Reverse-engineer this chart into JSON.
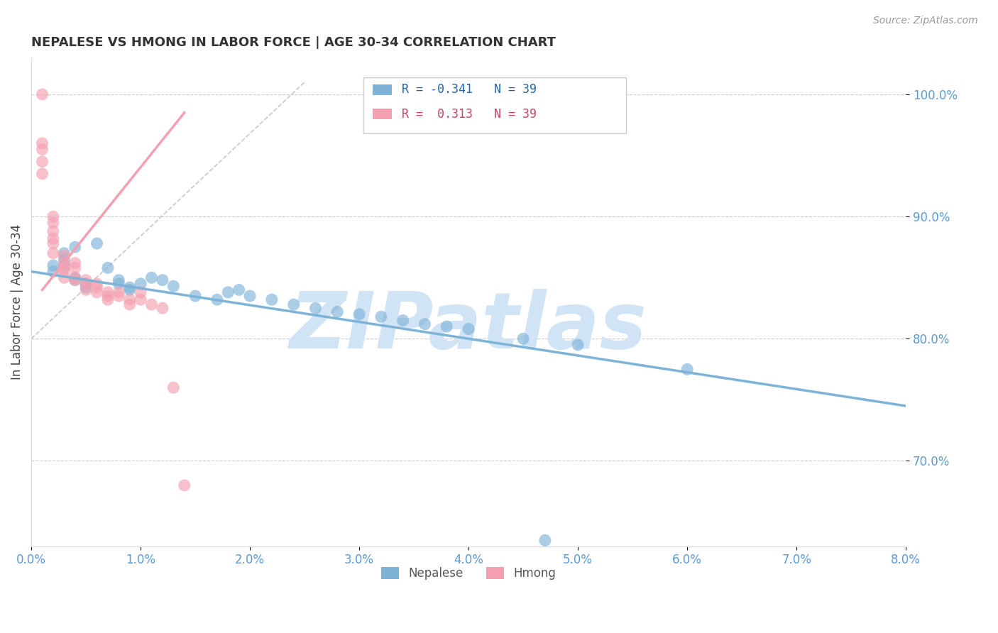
{
  "title": "NEPALESE VS HMONG IN LABOR FORCE | AGE 30-34 CORRELATION CHART",
  "source": "Source: ZipAtlas.com",
  "ylabel": "In Labor Force | Age 30-34",
  "xlim": [
    0.0,
    0.08
  ],
  "ylim": [
    0.63,
    1.03
  ],
  "yticks": [
    0.7,
    0.8,
    0.9,
    1.0
  ],
  "ytick_labels": [
    "70.0%",
    "80.0%",
    "90.0%",
    "100.0%"
  ],
  "xticks": [
    0.0,
    0.01,
    0.02,
    0.03,
    0.04,
    0.05,
    0.06,
    0.07,
    0.08
  ],
  "xtick_labels": [
    "0.0%",
    "1.0%",
    "2.0%",
    "3.0%",
    "4.0%",
    "5.0%",
    "6.0%",
    "7.0%",
    "8.0%"
  ],
  "blue_color": "#7EB3D8",
  "pink_color": "#F4A0B0",
  "blue_r": "-0.341",
  "blue_n": "39",
  "pink_r": "0.313",
  "pink_n": "39",
  "legend_label_blue": "Nepalese",
  "legend_label_pink": "Hmong",
  "watermark": "ZIPatlas",
  "watermark_color": "#D0E4F5",
  "nepalese_x": [
    0.003,
    0.004,
    0.002,
    0.002,
    0.003,
    0.003,
    0.004,
    0.004,
    0.005,
    0.005,
    0.006,
    0.007,
    0.008,
    0.008,
    0.009,
    0.009,
    0.01,
    0.011,
    0.012,
    0.013,
    0.015,
    0.017,
    0.018,
    0.019,
    0.02,
    0.022,
    0.024,
    0.026,
    0.028,
    0.03,
    0.032,
    0.034,
    0.036,
    0.038,
    0.04,
    0.045,
    0.05,
    0.06,
    0.047
  ],
  "nepalese_y": [
    0.87,
    0.875,
    0.86,
    0.855,
    0.865,
    0.86,
    0.85,
    0.848,
    0.845,
    0.842,
    0.878,
    0.858,
    0.848,
    0.845,
    0.842,
    0.84,
    0.845,
    0.85,
    0.848,
    0.843,
    0.835,
    0.832,
    0.838,
    0.84,
    0.835,
    0.832,
    0.828,
    0.825,
    0.822,
    0.82,
    0.818,
    0.815,
    0.812,
    0.81,
    0.808,
    0.8,
    0.795,
    0.775,
    0.635
  ],
  "hmong_x": [
    0.001,
    0.001,
    0.001,
    0.001,
    0.001,
    0.002,
    0.002,
    0.002,
    0.002,
    0.002,
    0.002,
    0.003,
    0.003,
    0.003,
    0.003,
    0.003,
    0.004,
    0.004,
    0.004,
    0.004,
    0.005,
    0.005,
    0.005,
    0.006,
    0.006,
    0.006,
    0.007,
    0.007,
    0.007,
    0.008,
    0.008,
    0.009,
    0.009,
    0.01,
    0.01,
    0.011,
    0.012,
    0.013,
    0.014
  ],
  "hmong_y": [
    1.0,
    0.96,
    0.955,
    0.945,
    0.935,
    0.9,
    0.895,
    0.888,
    0.882,
    0.878,
    0.87,
    0.868,
    0.862,
    0.858,
    0.855,
    0.85,
    0.862,
    0.858,
    0.85,
    0.848,
    0.848,
    0.845,
    0.84,
    0.845,
    0.842,
    0.838,
    0.838,
    0.835,
    0.832,
    0.838,
    0.835,
    0.832,
    0.828,
    0.838,
    0.832,
    0.828,
    0.825,
    0.76,
    0.68
  ],
  "blue_trend_x": [
    0.0,
    0.08
  ],
  "blue_trend_y": [
    0.855,
    0.745
  ],
  "pink_trend_x": [
    0.001,
    0.014
  ],
  "pink_trend_y": [
    0.84,
    0.985
  ],
  "ref_line_x": [
    0.0,
    0.025
  ],
  "ref_line_y": [
    0.8,
    1.01
  ]
}
